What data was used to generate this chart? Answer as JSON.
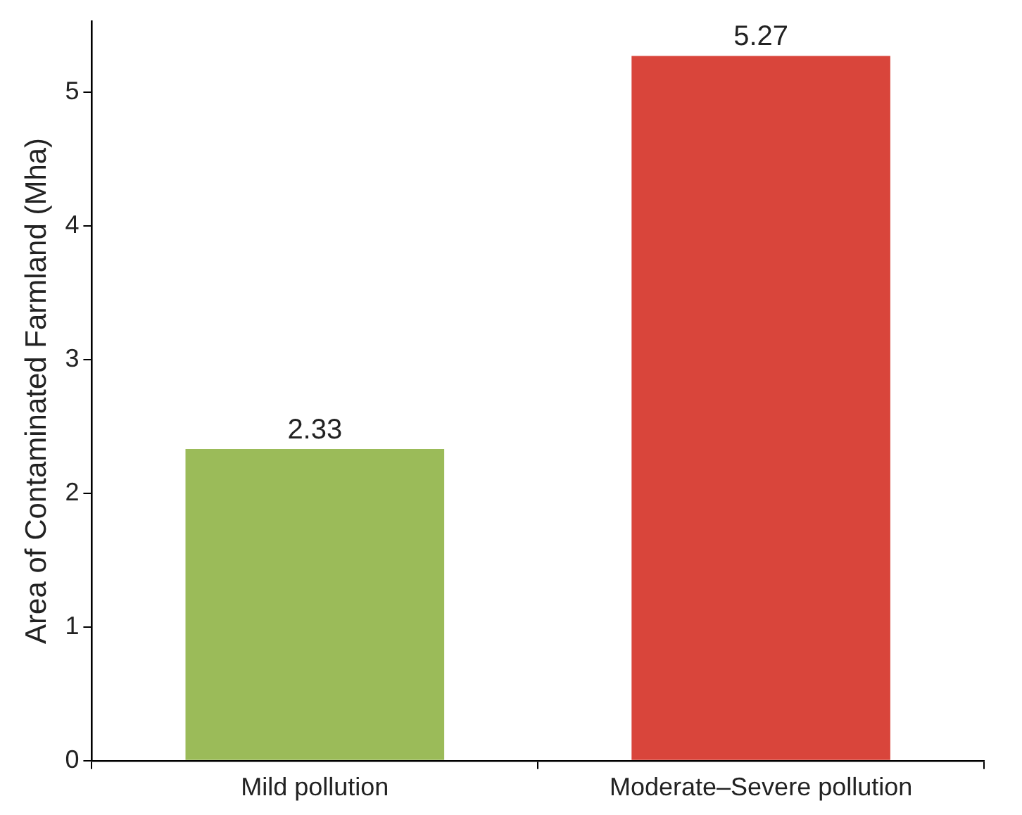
{
  "chart_data": {
    "type": "bar",
    "ylabel": "Area of Contaminated Farmland (Mha)",
    "categories": [
      "Mild pollution",
      "Moderate–Severe pollution"
    ],
    "values": [
      2.33,
      5.27
    ],
    "colors": [
      "#9bbb59",
      "#d9453b"
    ],
    "ylim": [
      0,
      5.53
    ],
    "yticks": [
      0,
      1,
      2,
      3,
      4,
      5
    ],
    "grid": false,
    "data_labels": true,
    "legend": false
  }
}
